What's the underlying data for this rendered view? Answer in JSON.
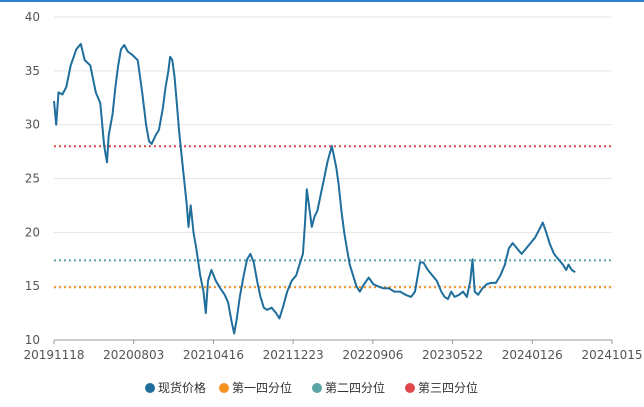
{
  "colors": {
    "spot_price": "#1f6e9c",
    "q1": "#f39220",
    "q2": "#5aa3a6",
    "q3": "#e0474c",
    "grid": "#e6e6e6",
    "axis": "#999999",
    "frame_top": "#2f7fd1"
  },
  "legend": [
    {
      "label": "现货价格",
      "color": "#1f6e9c"
    },
    {
      "label": "第一四分位",
      "color": "#f39220"
    },
    {
      "label": "第二四分位",
      "color": "#5aa3a6"
    },
    {
      "label": "第三四分位",
      "color": "#e0474c"
    }
  ],
  "chart_data": {
    "type": "line",
    "title": "",
    "xlabel": "",
    "ylabel": "",
    "ylim": [
      10,
      40
    ],
    "yticks": [
      "10",
      "15",
      "20",
      "25",
      "30",
      "35",
      "40"
    ],
    "xticks": [
      "20191118",
      "20200803",
      "20210416",
      "20211223",
      "20220906",
      "20230522",
      "20240126",
      "20241015"
    ],
    "x_range": [
      0,
      1
    ],
    "grid": "horizontal",
    "legend_position": "bottom",
    "reference_lines": [
      {
        "name": "第一四分位",
        "value": 14.9,
        "style": "dotted",
        "color": "#f39220"
      },
      {
        "name": "第二四分位",
        "value": 17.4,
        "style": "dotted",
        "color": "#5aa3a6"
      },
      {
        "name": "第三四分位",
        "value": 28.0,
        "style": "dotted",
        "color": "#e0474c"
      }
    ],
    "series": [
      {
        "name": "现货价格",
        "color": "#1f6e9c",
        "points": [
          [
            0.0,
            32.2
          ],
          [
            0.004,
            30.0
          ],
          [
            0.008,
            33.0
          ],
          [
            0.015,
            32.8
          ],
          [
            0.022,
            33.5
          ],
          [
            0.03,
            35.5
          ],
          [
            0.04,
            37.0
          ],
          [
            0.048,
            37.5
          ],
          [
            0.055,
            36.0
          ],
          [
            0.065,
            35.5
          ],
          [
            0.075,
            33.0
          ],
          [
            0.083,
            32.0
          ],
          [
            0.09,
            28.0
          ],
          [
            0.095,
            26.5
          ],
          [
            0.098,
            29.0
          ],
          [
            0.105,
            31.0
          ],
          [
            0.11,
            33.5
          ],
          [
            0.115,
            35.5
          ],
          [
            0.12,
            37.0
          ],
          [
            0.126,
            37.4
          ],
          [
            0.132,
            36.8
          ],
          [
            0.14,
            36.5
          ],
          [
            0.15,
            36.0
          ],
          [
            0.158,
            33.0
          ],
          [
            0.165,
            30.0
          ],
          [
            0.17,
            28.5
          ],
          [
            0.175,
            28.2
          ],
          [
            0.182,
            29.0
          ],
          [
            0.188,
            29.5
          ],
          [
            0.195,
            31.5
          ],
          [
            0.2,
            33.5
          ],
          [
            0.205,
            35.0
          ],
          [
            0.208,
            36.3
          ],
          [
            0.212,
            36.0
          ],
          [
            0.216,
            34.5
          ],
          [
            0.22,
            32.0
          ],
          [
            0.224,
            29.5
          ],
          [
            0.228,
            27.5
          ],
          [
            0.233,
            25.0
          ],
          [
            0.238,
            22.5
          ],
          [
            0.241,
            20.5
          ],
          [
            0.245,
            22.5
          ],
          [
            0.25,
            20.0
          ],
          [
            0.255,
            18.5
          ],
          [
            0.262,
            16.0
          ],
          [
            0.268,
            14.5
          ],
          [
            0.272,
            12.5
          ],
          [
            0.276,
            15.5
          ],
          [
            0.282,
            16.5
          ],
          [
            0.29,
            15.5
          ],
          [
            0.298,
            14.8
          ],
          [
            0.306,
            14.2
          ],
          [
            0.312,
            13.5
          ],
          [
            0.318,
            11.8
          ],
          [
            0.323,
            10.6
          ],
          [
            0.327,
            11.8
          ],
          [
            0.333,
            14.0
          ],
          [
            0.34,
            16.0
          ],
          [
            0.346,
            17.5
          ],
          [
            0.352,
            18.0
          ],
          [
            0.358,
            17.2
          ],
          [
            0.364,
            15.5
          ],
          [
            0.37,
            14.0
          ],
          [
            0.376,
            13.0
          ],
          [
            0.382,
            12.8
          ],
          [
            0.39,
            13.0
          ],
          [
            0.398,
            12.5
          ],
          [
            0.404,
            12.0
          ],
          [
            0.41,
            13.0
          ],
          [
            0.418,
            14.5
          ],
          [
            0.426,
            15.5
          ],
          [
            0.434,
            16.0
          ],
          [
            0.44,
            17.0
          ],
          [
            0.446,
            18.0
          ],
          [
            0.45,
            21.0
          ],
          [
            0.453,
            24.0
          ],
          [
            0.457,
            22.5
          ],
          [
            0.462,
            20.5
          ],
          [
            0.467,
            21.5
          ],
          [
            0.472,
            22.0
          ],
          [
            0.478,
            23.5
          ],
          [
            0.484,
            25.0
          ],
          [
            0.49,
            26.5
          ],
          [
            0.494,
            27.3
          ],
          [
            0.498,
            28.0
          ],
          [
            0.502,
            27.0
          ],
          [
            0.506,
            26.0
          ],
          [
            0.51,
            24.5
          ],
          [
            0.515,
            22.0
          ],
          [
            0.52,
            20.0
          ],
          [
            0.525,
            18.5
          ],
          [
            0.53,
            17.0
          ],
          [
            0.536,
            16.0
          ],
          [
            0.542,
            15.0
          ],
          [
            0.548,
            14.5
          ],
          [
            0.556,
            15.2
          ],
          [
            0.564,
            15.8
          ],
          [
            0.572,
            15.2
          ],
          [
            0.58,
            15.0
          ],
          [
            0.59,
            14.8
          ],
          [
            0.6,
            14.8
          ],
          [
            0.61,
            14.5
          ],
          [
            0.62,
            14.5
          ],
          [
            0.63,
            14.2
          ],
          [
            0.64,
            14.0
          ],
          [
            0.647,
            14.5
          ],
          [
            0.652,
            16.0
          ],
          [
            0.656,
            17.2
          ],
          [
            0.662,
            17.2
          ],
          [
            0.67,
            16.5
          ],
          [
            0.678,
            16.0
          ],
          [
            0.686,
            15.5
          ],
          [
            0.694,
            14.5
          ],
          [
            0.7,
            14.0
          ],
          [
            0.706,
            13.8
          ],
          [
            0.712,
            14.5
          ],
          [
            0.718,
            14.0
          ],
          [
            0.726,
            14.2
          ],
          [
            0.733,
            14.5
          ],
          [
            0.74,
            14.0
          ],
          [
            0.746,
            15.5
          ],
          [
            0.75,
            17.5
          ],
          [
            0.754,
            14.5
          ],
          [
            0.76,
            14.2
          ],
          [
            0.768,
            14.8
          ],
          [
            0.776,
            15.2
          ],
          [
            0.784,
            15.3
          ],
          [
            0.792,
            15.3
          ],
          [
            0.8,
            16.0
          ],
          [
            0.808,
            17.0
          ],
          [
            0.815,
            18.5
          ],
          [
            0.822,
            19.0
          ],
          [
            0.83,
            18.5
          ],
          [
            0.838,
            18.0
          ],
          [
            0.846,
            18.5
          ],
          [
            0.854,
            19.0
          ],
          [
            0.862,
            19.5
          ],
          [
            0.87,
            20.3
          ],
          [
            0.876,
            20.9
          ],
          [
            0.882,
            20.0
          ],
          [
            0.888,
            19.0
          ],
          [
            0.896,
            18.0
          ],
          [
            0.904,
            17.5
          ],
          [
            0.912,
            17.0
          ],
          [
            0.918,
            16.5
          ],
          [
            0.922,
            17.0
          ],
          [
            0.928,
            16.5
          ],
          [
            0.934,
            16.3
          ]
        ]
      }
    ]
  }
}
